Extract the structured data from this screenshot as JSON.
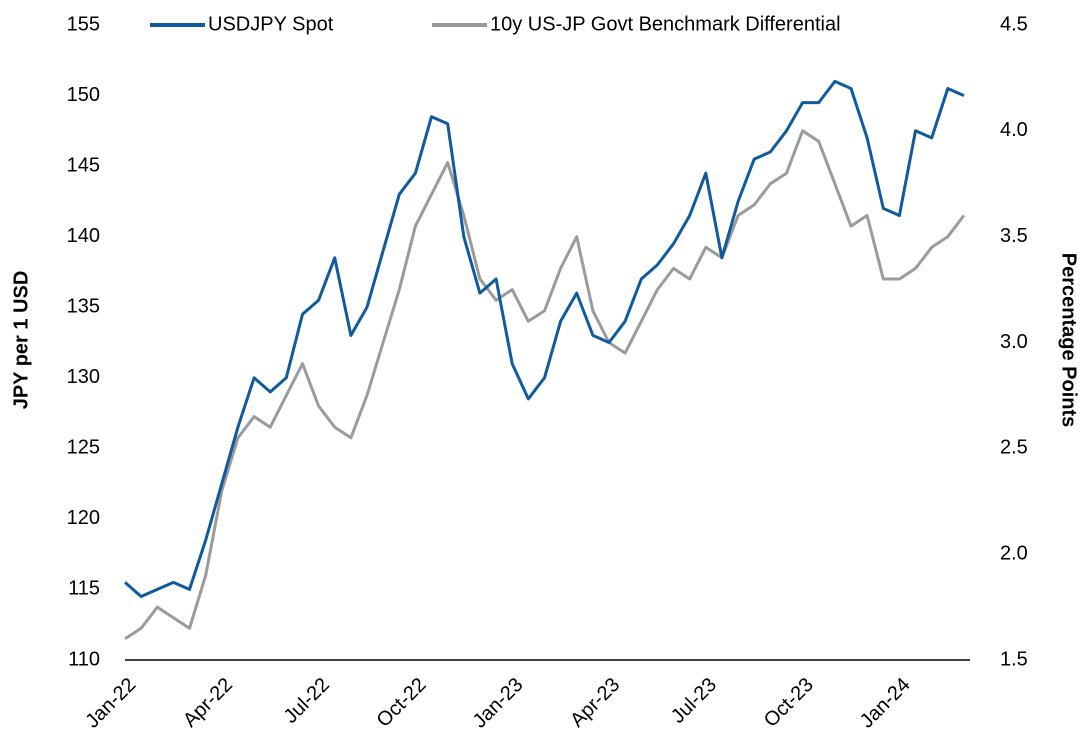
{
  "chart_data": {
    "type": "line",
    "y_label": "JPY per 1 USD",
    "y2_label": "Percentage Points",
    "categories": [
      "Jan-22",
      null,
      null,
      null,
      null,
      null,
      "Apr-22",
      null,
      null,
      null,
      null,
      null,
      "Jul-22",
      null,
      null,
      null,
      null,
      null,
      "Oct-22",
      null,
      null,
      null,
      null,
      null,
      "Jan-23",
      null,
      null,
      null,
      null,
      null,
      "Apr-23",
      null,
      null,
      null,
      null,
      null,
      "Jul-23",
      null,
      null,
      null,
      null,
      null,
      "Oct-23",
      null,
      null,
      null,
      null,
      null,
      "Jan-24",
      null,
      null,
      null,
      null
    ],
    "series": [
      {
        "name": "USDJPY Spot",
        "color": "#105a9e",
        "axis": "y",
        "values": [
          115.5,
          114.5,
          115,
          115.5,
          115,
          118.5,
          122.5,
          126.5,
          130,
          129,
          130,
          134.5,
          135.5,
          138.5,
          133,
          135,
          139,
          143,
          144.5,
          148.5,
          148,
          140,
          136,
          137,
          131,
          128.5,
          130,
          134,
          136,
          133,
          132.5,
          134,
          137,
          138,
          139.5,
          141.5,
          144.5,
          138.5,
          142.5,
          145.5,
          146,
          147.5,
          149.5,
          149.5,
          151,
          150.5,
          147,
          142,
          141.5,
          147.5,
          147,
          150.5,
          150
        ]
      },
      {
        "name": "10y US-JP Govt Benchmark Differential",
        "color": "#9b9b9b",
        "axis": "y2",
        "values": [
          1.6,
          1.65,
          1.75,
          1.7,
          1.65,
          1.9,
          2.3,
          2.55,
          2.65,
          2.6,
          2.75,
          2.9,
          2.7,
          2.6,
          2.55,
          2.75,
          3.0,
          3.25,
          3.55,
          3.7,
          3.85,
          3.6,
          3.3,
          3.2,
          3.25,
          3.1,
          3.15,
          3.35,
          3.5,
          3.15,
          3.0,
          2.95,
          3.1,
          3.25,
          3.35,
          3.3,
          3.45,
          3.4,
          3.6,
          3.65,
          3.75,
          3.8,
          4.0,
          3.95,
          3.75,
          3.55,
          3.6,
          3.3,
          3.3,
          3.35,
          3.45,
          3.5,
          3.6
        ]
      }
    ],
    "ylim": [
      110,
      155
    ],
    "yticks": [
      110,
      115,
      120,
      125,
      130,
      135,
      140,
      145,
      150,
      155
    ],
    "y2lim": [
      1.5,
      4.5
    ],
    "y2ticks": [
      1.5,
      {
        "value": 2,
        "label": "2.0"
      },
      2.5,
      {
        "value": 3,
        "label": "3.0"
      },
      3.5,
      {
        "value": 4,
        "label": "4.0"
      },
      4.5
    ],
    "grid": false,
    "legend": "top"
  }
}
